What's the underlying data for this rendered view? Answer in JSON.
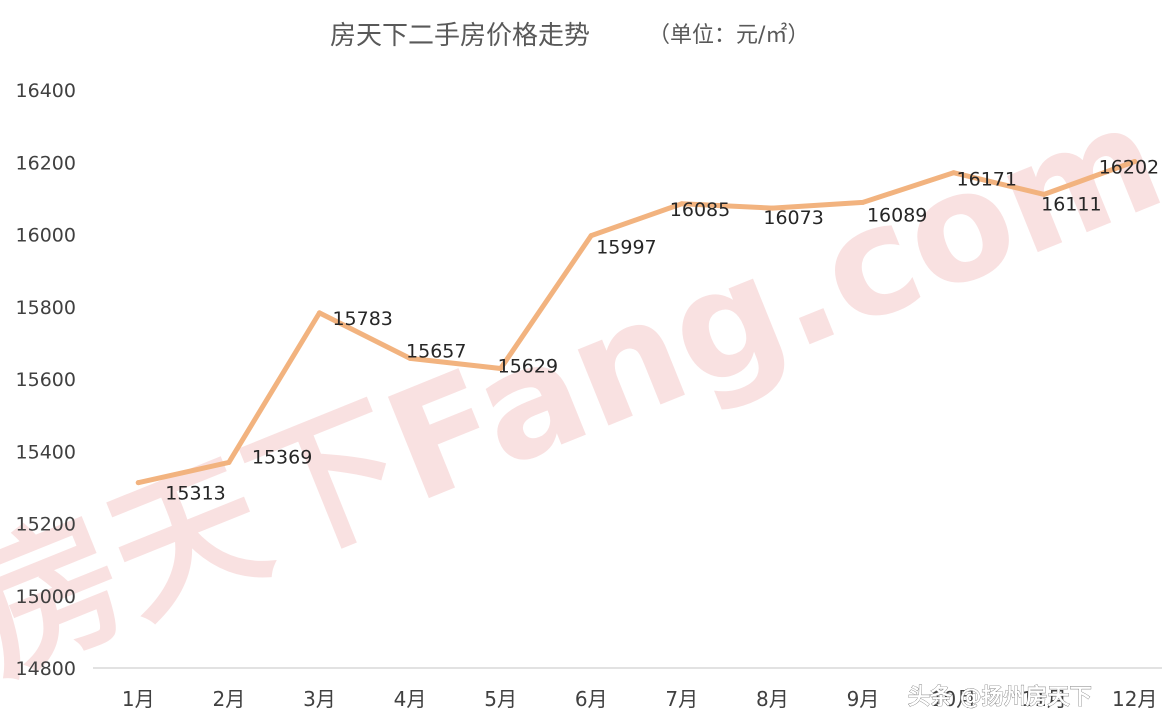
{
  "chart_data": {
    "type": "line",
    "title": "房天下二手房价格走势",
    "title_unit": "（单位：元/㎡）",
    "categories": [
      "1月",
      "2月",
      "3月",
      "4月",
      "5月",
      "6月",
      "7月",
      "8月",
      "9月",
      "10月",
      "11月",
      "12月"
    ],
    "series": [
      {
        "values": [
          15313,
          15369,
          15783,
          15657,
          15629,
          15997,
          16085,
          16073,
          16089,
          16171,
          16111,
          16202
        ]
      }
    ],
    "data_labels": [
      "15313",
      "15369",
      "15783",
      "15657",
      "15629",
      "15997",
      "16085",
      "16073",
      "16089",
      "16171",
      "16111",
      "16202"
    ],
    "ylim": [
      14800,
      16400
    ],
    "yticks": [
      16400,
      16200,
      16000,
      15800,
      15600,
      15400,
      15200,
      15000,
      14800
    ],
    "line_color": "#F2B37F",
    "grid": false,
    "xlabel": "",
    "ylabel": ""
  },
  "watermark": {
    "text": "房天下Fang.com",
    "color": "#F4C4C4"
  },
  "credit": {
    "text": "头条 @扬州房天下"
  }
}
